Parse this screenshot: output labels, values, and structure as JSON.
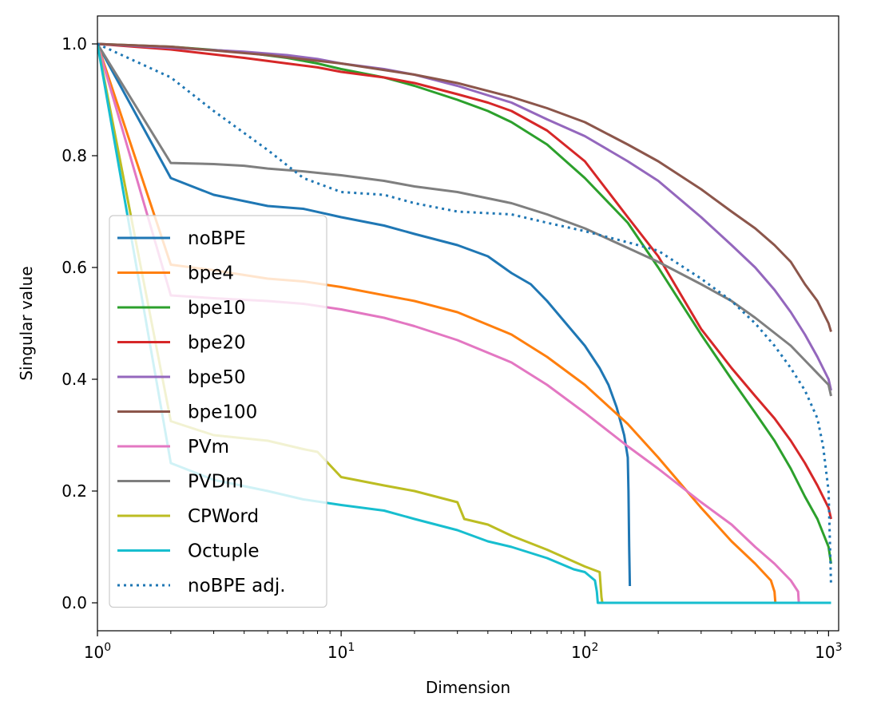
{
  "chart_data": {
    "type": "line",
    "title": "",
    "xlabel": "Dimension",
    "ylabel": "Singular value",
    "xscale": "log",
    "xlim": [
      1,
      1100
    ],
    "ylim": [
      -0.05,
      1.05
    ],
    "x_ticks": [
      {
        "value": 1,
        "base": "10",
        "exp": "0"
      },
      {
        "value": 10,
        "base": "10",
        "exp": "1"
      },
      {
        "value": 100,
        "base": "10",
        "exp": "2"
      },
      {
        "value": 1000,
        "base": "10",
        "exp": "3"
      }
    ],
    "y_ticks": [
      {
        "value": 0.0,
        "label": "0.0"
      },
      {
        "value": 0.2,
        "label": "0.2"
      },
      {
        "value": 0.4,
        "label": "0.4"
      },
      {
        "value": 0.6,
        "label": "0.6"
      },
      {
        "value": 0.8,
        "label": "0.8"
      },
      {
        "value": 1.0,
        "label": "1.0"
      }
    ],
    "grid": false,
    "legend_position": "lower-left",
    "series": [
      {
        "name": "noBPE",
        "color": "#1f77b4",
        "style": "solid",
        "x": [
          1,
          2,
          3,
          5,
          7,
          10,
          15,
          20,
          30,
          40,
          50,
          60,
          70,
          80,
          100,
          115,
          125,
          135,
          145,
          150,
          151,
          152,
          153
        ],
        "y": [
          1.0,
          0.76,
          0.73,
          0.71,
          0.705,
          0.69,
          0.675,
          0.66,
          0.64,
          0.62,
          0.59,
          0.57,
          0.54,
          0.51,
          0.46,
          0.42,
          0.39,
          0.35,
          0.3,
          0.26,
          0.2,
          0.1,
          0.03
        ]
      },
      {
        "name": "bpe4",
        "color": "#ff7f0e",
        "style": "solid",
        "x": [
          1,
          2,
          3,
          5,
          7,
          10,
          20,
          30,
          50,
          70,
          100,
          150,
          200,
          300,
          400,
          500,
          580,
          600,
          605
        ],
        "y": [
          1.0,
          0.605,
          0.595,
          0.58,
          0.575,
          0.565,
          0.54,
          0.52,
          0.48,
          0.44,
          0.39,
          0.32,
          0.26,
          0.17,
          0.11,
          0.07,
          0.04,
          0.02,
          0.0
        ]
      },
      {
        "name": "bpe10",
        "color": "#2ca02c",
        "style": "solid",
        "x": [
          1,
          2,
          4,
          6,
          8,
          10,
          15,
          20,
          30,
          40,
          50,
          70,
          100,
          150,
          200,
          300,
          400,
          500,
          600,
          700,
          800,
          900,
          1000,
          1024
        ],
        "y": [
          1.0,
          0.995,
          0.985,
          0.975,
          0.965,
          0.955,
          0.94,
          0.925,
          0.9,
          0.88,
          0.86,
          0.82,
          0.76,
          0.68,
          0.6,
          0.48,
          0.4,
          0.34,
          0.29,
          0.24,
          0.19,
          0.15,
          0.1,
          0.07
        ]
      },
      {
        "name": "bpe20",
        "color": "#d62728",
        "style": "solid",
        "x": [
          1,
          2,
          4,
          6,
          8,
          10,
          15,
          20,
          30,
          40,
          50,
          70,
          100,
          150,
          200,
          300,
          400,
          500,
          600,
          700,
          800,
          900,
          1000,
          1024
        ],
        "y": [
          1.0,
          0.99,
          0.975,
          0.965,
          0.958,
          0.95,
          0.94,
          0.93,
          0.91,
          0.895,
          0.88,
          0.845,
          0.79,
          0.69,
          0.62,
          0.49,
          0.42,
          0.37,
          0.33,
          0.29,
          0.25,
          0.21,
          0.17,
          0.15
        ]
      },
      {
        "name": "bpe50",
        "color": "#9467bd",
        "style": "solid",
        "x": [
          1,
          2,
          4,
          6,
          8,
          10,
          15,
          20,
          30,
          50,
          70,
          100,
          150,
          200,
          300,
          400,
          500,
          600,
          700,
          800,
          900,
          1000,
          1024
        ],
        "y": [
          1.0,
          0.993,
          0.986,
          0.98,
          0.973,
          0.965,
          0.955,
          0.945,
          0.925,
          0.895,
          0.865,
          0.835,
          0.79,
          0.755,
          0.69,
          0.64,
          0.6,
          0.56,
          0.52,
          0.48,
          0.44,
          0.4,
          0.38
        ]
      },
      {
        "name": "bpe100",
        "color": "#8c564b",
        "style": "solid",
        "x": [
          1,
          2,
          5,
          10,
          20,
          30,
          50,
          70,
          100,
          150,
          200,
          300,
          400,
          500,
          600,
          700,
          800,
          900,
          1000,
          1024
        ],
        "y": [
          1.0,
          0.995,
          0.98,
          0.965,
          0.945,
          0.93,
          0.905,
          0.885,
          0.86,
          0.82,
          0.79,
          0.74,
          0.7,
          0.67,
          0.64,
          0.61,
          0.57,
          0.54,
          0.5,
          0.485
        ]
      },
      {
        "name": "PVm",
        "color": "#e377c2",
        "style": "solid",
        "x": [
          1,
          2,
          3,
          5,
          7,
          10,
          15,
          20,
          30,
          50,
          70,
          100,
          150,
          200,
          300,
          400,
          500,
          600,
          700,
          750,
          755
        ],
        "y": [
          1.0,
          0.55,
          0.545,
          0.54,
          0.535,
          0.525,
          0.51,
          0.495,
          0.47,
          0.43,
          0.39,
          0.34,
          0.28,
          0.24,
          0.18,
          0.14,
          0.1,
          0.07,
          0.04,
          0.02,
          0.0
        ]
      },
      {
        "name": "PVDm",
        "color": "#7f7f7f",
        "style": "solid",
        "x": [
          1,
          2,
          3,
          4,
          5,
          7,
          10,
          15,
          20,
          30,
          50,
          70,
          100,
          150,
          200,
          300,
          400,
          500,
          700,
          1000,
          1024
        ],
        "y": [
          1.0,
          0.787,
          0.785,
          0.782,
          0.777,
          0.772,
          0.765,
          0.755,
          0.745,
          0.735,
          0.715,
          0.695,
          0.67,
          0.635,
          0.61,
          0.57,
          0.54,
          0.51,
          0.46,
          0.39,
          0.37
        ]
      },
      {
        "name": "CPWord",
        "color": "#bcbd22",
        "style": "solid",
        "x": [
          1,
          2,
          3,
          5,
          7,
          8,
          10,
          15,
          20,
          30,
          32,
          40,
          50,
          70,
          100,
          115,
          117,
          118
        ],
        "y": [
          1.0,
          0.325,
          0.3,
          0.29,
          0.275,
          0.27,
          0.225,
          0.21,
          0.2,
          0.18,
          0.15,
          0.14,
          0.12,
          0.095,
          0.065,
          0.055,
          0.01,
          0.0
        ]
      },
      {
        "name": "Octuple",
        "color": "#17becf",
        "style": "solid",
        "x": [
          1,
          2,
          3,
          5,
          7,
          10,
          15,
          20,
          30,
          40,
          50,
          70,
          90,
          100,
          110,
          112,
          113,
          1024
        ],
        "y": [
          1.0,
          0.25,
          0.22,
          0.2,
          0.185,
          0.175,
          0.165,
          0.15,
          0.13,
          0.11,
          0.1,
          0.08,
          0.06,
          0.055,
          0.04,
          0.02,
          0.0,
          0.0
        ]
      },
      {
        "name": "noBPE adj.",
        "color": "#1f77b4",
        "style": "dotted",
        "x": [
          1,
          2,
          3,
          5,
          7,
          10,
          15,
          20,
          30,
          50,
          70,
          100,
          150,
          200,
          300,
          400,
          500,
          600,
          700,
          800,
          900,
          950,
          1000,
          1024
        ],
        "y": [
          1.0,
          0.94,
          0.88,
          0.81,
          0.76,
          0.735,
          0.73,
          0.715,
          0.7,
          0.695,
          0.68,
          0.665,
          0.645,
          0.63,
          0.58,
          0.54,
          0.5,
          0.46,
          0.42,
          0.38,
          0.33,
          0.28,
          0.2,
          0.03
        ]
      }
    ]
  }
}
